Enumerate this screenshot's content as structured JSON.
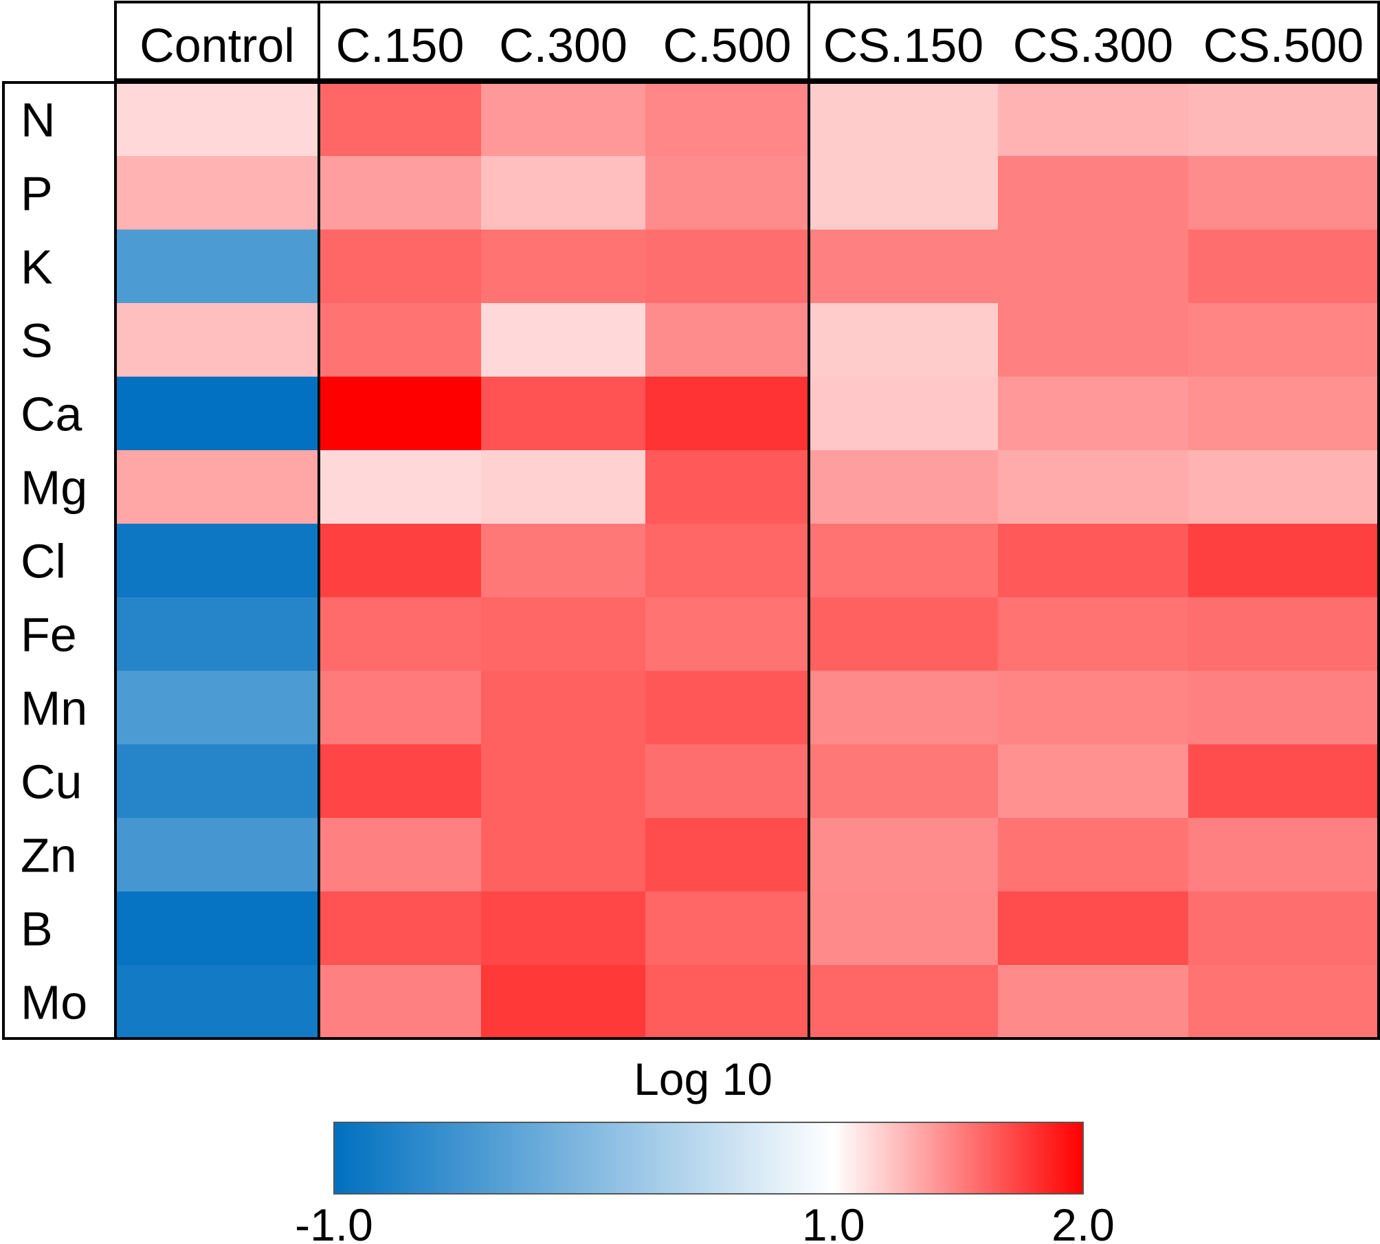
{
  "chart_data": {
    "type": "heatmap",
    "title": "",
    "colorbar": {
      "label": "Log 10",
      "min": -1.0,
      "mid": 1.0,
      "max": 2.0,
      "tick_labels": [
        "-1.0",
        "1.0",
        "2.0"
      ],
      "colors": {
        "low": "#0070c0",
        "mid": "#ffffff",
        "high": "#ff0000"
      }
    },
    "columns": [
      "Control",
      "C.150",
      "C.300",
      "C.500",
      "CS.150",
      "CS.300",
      "CS.500"
    ],
    "column_groups": [
      {
        "columns": [
          "Control"
        ]
      },
      {
        "columns": [
          "C.150",
          "C.300",
          "C.500"
        ]
      },
      {
        "columns": [
          "CS.150",
          "CS.300",
          "CS.500"
        ]
      }
    ],
    "rows": [
      "N",
      "P",
      "K",
      "S",
      "Ca",
      "Mg",
      "Cl",
      "Fe",
      "Mn",
      "Cu",
      "Zn",
      "B",
      "Mo"
    ],
    "values": [
      [
        1.15,
        1.6,
        1.4,
        1.47,
        1.2,
        1.3,
        1.28
      ],
      [
        1.3,
        1.38,
        1.25,
        1.45,
        1.2,
        1.5,
        1.45
      ],
      [
        -0.4,
        1.6,
        1.55,
        1.57,
        1.5,
        1.5,
        1.57
      ],
      [
        1.25,
        1.55,
        1.15,
        1.45,
        1.2,
        1.5,
        1.48
      ],
      [
        -0.98,
        2.0,
        1.68,
        1.8,
        1.22,
        1.4,
        1.43
      ],
      [
        1.35,
        1.15,
        1.18,
        1.65,
        1.38,
        1.33,
        1.3
      ],
      [
        -0.9,
        1.75,
        1.53,
        1.6,
        1.55,
        1.65,
        1.75
      ],
      [
        -0.7,
        1.58,
        1.6,
        1.55,
        1.62,
        1.55,
        1.57
      ],
      [
        -0.4,
        1.52,
        1.62,
        1.66,
        1.46,
        1.48,
        1.5
      ],
      [
        -0.7,
        1.73,
        1.62,
        1.57,
        1.53,
        1.43,
        1.7
      ],
      [
        -0.45,
        1.5,
        1.62,
        1.7,
        1.45,
        1.55,
        1.5
      ],
      [
        -0.95,
        1.68,
        1.72,
        1.6,
        1.46,
        1.7,
        1.57
      ],
      [
        -0.85,
        1.5,
        1.78,
        1.64,
        1.6,
        1.46,
        1.55
      ]
    ]
  }
}
